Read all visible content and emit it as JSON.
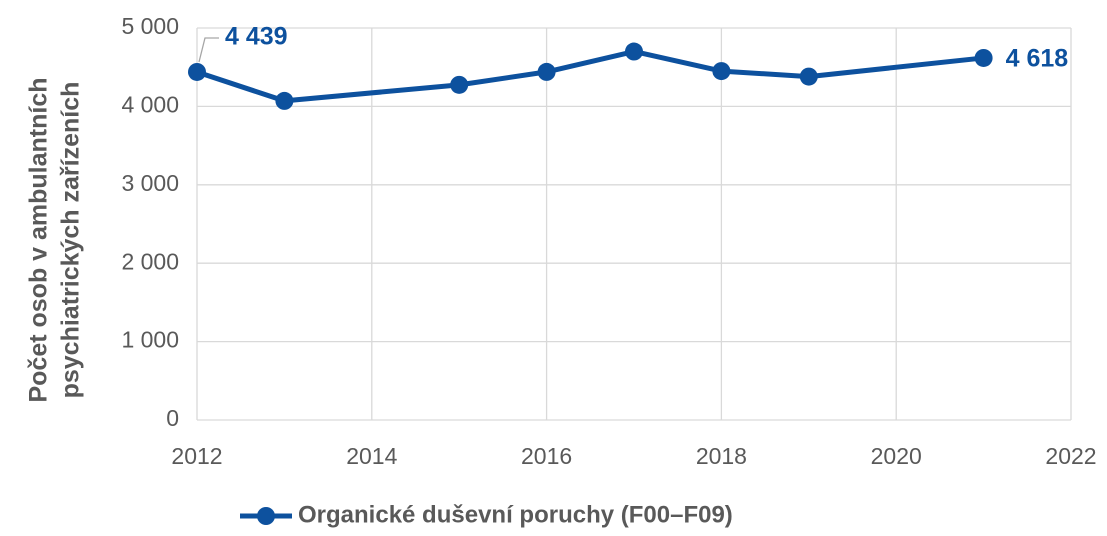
{
  "chart_data": {
    "type": "line",
    "ylabel": [
      "Počet osob v ambulantních",
      "psychiatrických zařízeních"
    ],
    "x": [
      2012,
      2013,
      2015,
      2016,
      2017,
      2018,
      2019,
      2021
    ],
    "series": [
      {
        "name": "Organické duševní poruchy (F00–F09)",
        "color": "#0d519e",
        "values": [
          4439,
          4070,
          4275,
          4440,
          4700,
          4450,
          4380,
          4618
        ],
        "value_labels": [
          "4 439",
          null,
          null,
          null,
          null,
          null,
          null,
          "4 618"
        ]
      }
    ],
    "xlim": [
      2012,
      2022
    ],
    "xticks": [
      2012,
      2014,
      2016,
      2018,
      2020,
      2022
    ],
    "ylim": [
      0,
      5000
    ],
    "yticks": [
      0,
      {
        "value": 1000,
        "label": "1 000"
      },
      {
        "value": 2000,
        "label": "2 000"
      },
      {
        "value": 3000,
        "label": "3 000"
      },
      {
        "value": 4000,
        "label": "4 000"
      },
      {
        "value": 5000,
        "label": "5 000"
      }
    ],
    "grid": true,
    "legend": "bottom"
  }
}
